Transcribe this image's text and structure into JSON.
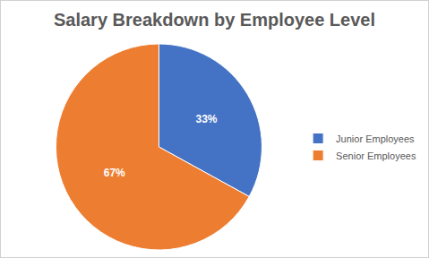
{
  "chart_data": {
    "type": "pie",
    "title": "Salary Breakdown by Employee Level",
    "categories": [
      "Junior Employees",
      "Senior Employees"
    ],
    "values": [
      33,
      67
    ],
    "value_labels": [
      "33%",
      "67%"
    ],
    "colors": [
      "#4472c4",
      "#ed7d31"
    ],
    "data_labels": true,
    "legend": "right"
  }
}
